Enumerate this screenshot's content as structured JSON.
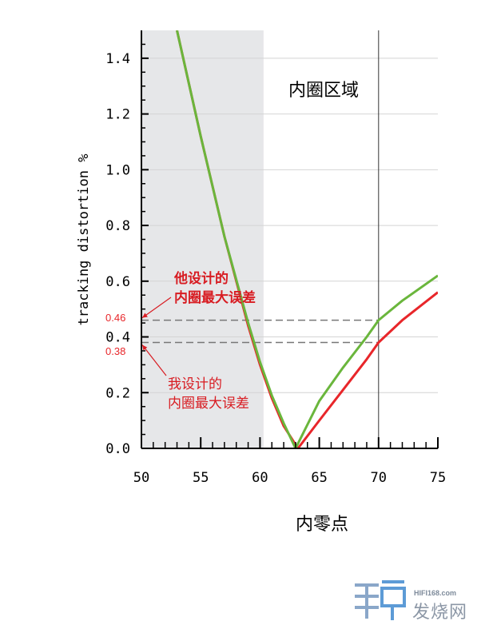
{
  "chart_data": {
    "type": "line",
    "xlabel": "内零点",
    "ylabel": "tracking distortion %",
    "xlim": [
      50,
      75
    ],
    "ylim": [
      0,
      1.5
    ],
    "x_ticks": [
      "50",
      "55",
      "60",
      "65",
      "70",
      "75"
    ],
    "y_ticks": [
      "0.0",
      "0.2",
      "0.4",
      "0.6",
      "0.8",
      "1.0",
      "1.2",
      "1.4"
    ],
    "grid": true,
    "shaded_region": {
      "x_range": [
        50,
        60.3
      ],
      "label": ""
    },
    "vertical_line": {
      "x": 70
    },
    "region_label": "内圈区域",
    "series": [
      {
        "color": "#e8262a",
        "x": [
          53,
          55,
          57,
          59,
          60,
          61,
          62,
          63.2,
          65,
          67,
          69,
          70,
          72,
          75
        ],
        "y": [
          1.5,
          1.12,
          0.76,
          0.44,
          0.3,
          0.18,
          0.08,
          0.0,
          0.1,
          0.21,
          0.32,
          0.38,
          0.46,
          0.56
        ]
      },
      {
        "color": "#6ab63c",
        "x": [
          53,
          55,
          57,
          59,
          60,
          61,
          62,
          63,
          65,
          67,
          69,
          70,
          72,
          75
        ],
        "y": [
          1.5,
          1.12,
          0.76,
          0.45,
          0.31,
          0.19,
          0.09,
          0.0,
          0.17,
          0.29,
          0.4,
          0.46,
          0.53,
          0.62
        ]
      }
    ],
    "reference_lines": [
      {
        "y": 0.46,
        "label": "0.46",
        "color": "#e8262a"
      },
      {
        "y": 0.38,
        "label": "0.38",
        "color": "#e8262a"
      }
    ],
    "annotations": [
      {
        "text_lines": [
          "他设计的",
          "内圈最大误差"
        ],
        "target": 0.46,
        "bold": true,
        "color": "#d81c22"
      },
      {
        "text_lines": [
          "我设计的",
          "内圈最大误差"
        ],
        "target": 0.38,
        "bold": false,
        "color": "#d81c22"
      }
    ]
  },
  "watermark": {
    "url": "HIFI168.com",
    "text": "发烧网"
  }
}
